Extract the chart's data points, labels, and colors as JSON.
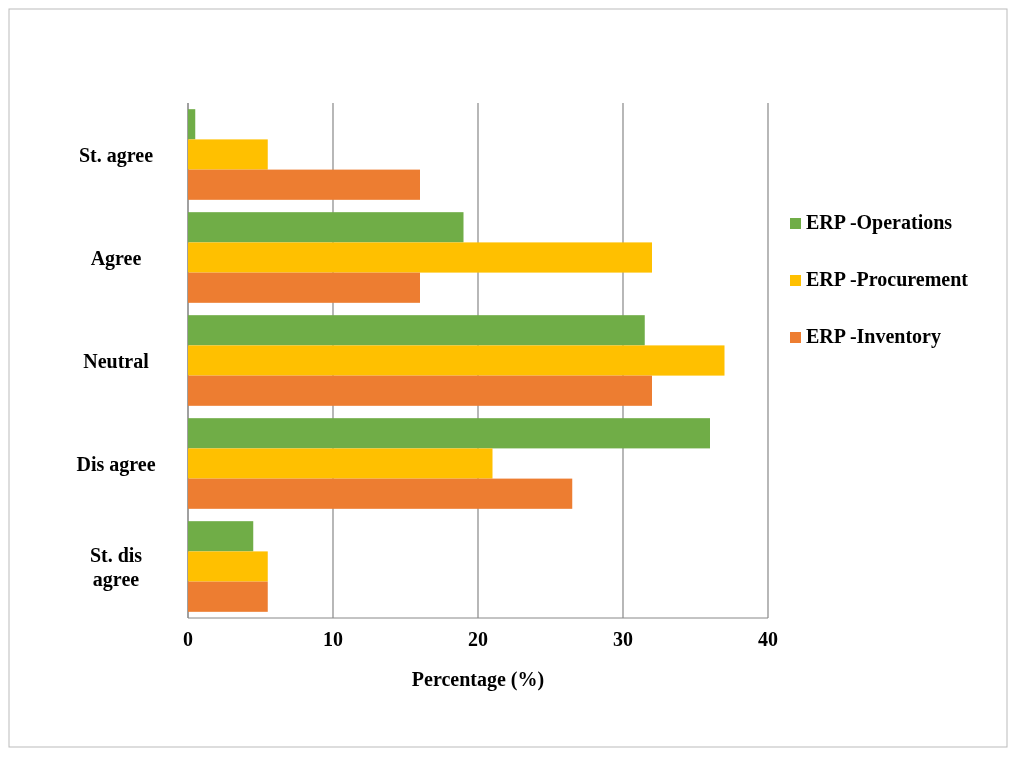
{
  "chart_data": {
    "type": "bar",
    "orientation": "horizontal",
    "xlabel": "Percentage (%)",
    "categories": [
      "St. agree",
      "Agree",
      "Neutral",
      "Dis agree",
      "St. dis agree"
    ],
    "series": [
      {
        "name": "ERP -Operations",
        "color": "#70ad47",
        "values": [
          0.5,
          19,
          31.5,
          36,
          4.5
        ]
      },
      {
        "name": "ERP -Procurement",
        "color": "#ffc000",
        "values": [
          5.5,
          32,
          37,
          21,
          5.5
        ]
      },
      {
        "name": "ERP -Inventory",
        "color": "#ed7d31",
        "values": [
          16,
          16,
          32,
          26.5,
          5.5
        ]
      }
    ],
    "xlim": [
      0,
      40
    ],
    "xticks": [
      0,
      10,
      20,
      30,
      40
    ],
    "grid": "x",
    "legend": "right"
  }
}
